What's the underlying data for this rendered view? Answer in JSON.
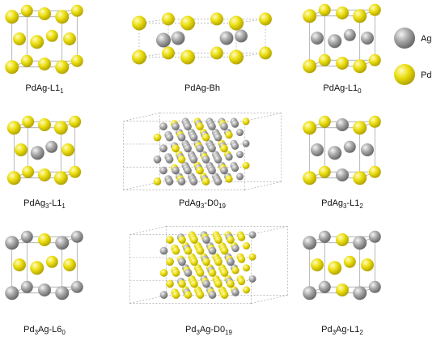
{
  "panels": [
    {
      "label": [
        "PdAg-L1",
        "1"
      ]
    },
    {
      "label": [
        "PdAg-Bh"
      ]
    },
    {
      "label": [
        "PdAg-L1",
        "0"
      ]
    },
    {
      "label": [
        "PdAg",
        "3",
        "-L1",
        "1"
      ]
    },
    {
      "label": [
        "PdAg",
        "3",
        "-D0",
        "19"
      ]
    },
    {
      "label": [
        "PdAg",
        "3",
        "-L1",
        "2"
      ]
    },
    {
      "label": [
        "Pd",
        "3",
        "Ag-L6",
        "0"
      ]
    },
    {
      "label": [
        "Pd",
        "3",
        "Ag-D0",
        "19"
      ]
    },
    {
      "label": [
        "Pd",
        "3",
        "Ag-L1",
        "2"
      ]
    }
  ],
  "legend": [
    {
      "label": "Ag"
    },
    {
      "label": "Pd"
    }
  ]
}
